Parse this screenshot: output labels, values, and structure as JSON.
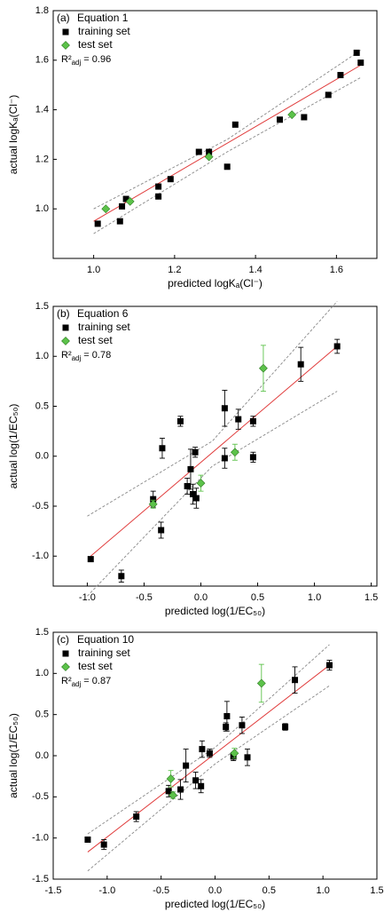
{
  "chart_data": [
    {
      "type": "scatter",
      "panel": "(a)",
      "title": "Equation 1",
      "r2_label": "R²",
      "r2_sub": "adj",
      "r2_value": "= 0.96",
      "xlabel": "predicted logKₐ(Cl⁻)",
      "ylabel": "actual logKₐ(Cl⁻)",
      "xlim": [
        0.9,
        1.7
      ],
      "ylim": [
        0.8,
        1.8
      ],
      "xticks": [
        {
          "value": 1,
          "label": "1.0"
        },
        1.2,
        1.4,
        1.6
      ],
      "yticks": [
        {
          "value": 1,
          "label": "1.0"
        },
        1.2,
        1.4,
        1.6,
        1.8
      ],
      "series": [
        {
          "name": "training set",
          "color": "#000000",
          "marker": "square",
          "x": [
            1.01,
            1.065,
            1.07,
            1.08,
            1.16,
            1.16,
            1.19,
            1.26,
            1.285,
            1.33,
            1.35,
            1.46,
            1.52,
            1.58,
            1.61,
            1.65,
            1.66
          ],
          "y": [
            0.94,
            0.95,
            1.01,
            1.04,
            1.09,
            1.05,
            1.12,
            1.23,
            1.23,
            1.17,
            1.34,
            1.36,
            1.37,
            1.46,
            1.54,
            1.63,
            1.59
          ]
        },
        {
          "name": "test set",
          "color": "#5cc24a",
          "marker": "diamond",
          "x": [
            1.03,
            1.09,
            1.285,
            1.49
          ],
          "y": [
            1.0,
            1.03,
            1.21,
            1.38
          ]
        }
      ],
      "fit": {
        "color": "#e03a3a",
        "x": [
          1.0,
          1.66
        ],
        "y": [
          0.95,
          1.58
        ]
      },
      "band": {
        "color": "#888888",
        "upper": {
          "x": [
            1.0,
            1.33,
            1.66
          ],
          "y": [
            1.0,
            1.28,
            1.64
          ]
        },
        "lower": {
          "x": [
            1.0,
            1.33,
            1.66
          ],
          "y": [
            0.9,
            1.23,
            1.53
          ]
        }
      }
    },
    {
      "type": "scatter",
      "panel": "(b)",
      "title": "Equation 6",
      "r2_label": "R²",
      "r2_sub": "adj",
      "r2_value": "= 0.78",
      "xlabel": "predicted log(1/EC₅₀)",
      "ylabel": "actual log(1/EC₅₀)",
      "xlim": [
        -1.3,
        1.55
      ],
      "ylim": [
        -1.3,
        1.5
      ],
      "xticks": [
        {
          "value": -1,
          "label": "-1.0"
        },
        -0.5,
        {
          "value": 0,
          "label": "0.0"
        },
        0.5,
        {
          "value": 1,
          "label": "1.0"
        },
        1.5
      ],
      "yticks": [
        {
          "value": -1,
          "label": "-1.0"
        },
        -0.5,
        {
          "value": 0,
          "label": "0.0"
        },
        0.5,
        {
          "value": 1,
          "label": "1.0"
        },
        1.5
      ],
      "series": [
        {
          "name": "training set",
          "color": "#000000",
          "marker": "square",
          "x": [
            -0.97,
            -0.7,
            -0.42,
            -0.35,
            -0.34,
            -0.18,
            -0.12,
            -0.09,
            -0.07,
            -0.05,
            -0.04,
            0.21,
            0.21,
            0.33,
            0.46,
            0.46,
            0.88,
            1.2
          ],
          "y": [
            -1.03,
            -1.2,
            -0.43,
            -0.74,
            0.08,
            0.35,
            -0.3,
            -0.13,
            -0.38,
            0.04,
            -0.42,
            0.48,
            -0.02,
            0.37,
            0.35,
            -0.01,
            0.92,
            1.1
          ],
          "yerr": [
            0.02,
            0.06,
            0.08,
            0.08,
            0.1,
            0.05,
            0.08,
            0.2,
            0.1,
            0.05,
            0.1,
            0.18,
            0.1,
            0.1,
            0.05,
            0.05,
            0.17,
            0.07
          ]
        },
        {
          "name": "test set",
          "color": "#5cc24a",
          "marker": "diamond",
          "x": [
            -0.42,
            0.0,
            0.3,
            0.55
          ],
          "y": [
            -0.48,
            -0.27,
            0.04,
            0.88
          ],
          "yerr": [
            0.04,
            0.08,
            0.08,
            0.23
          ]
        }
      ],
      "fit": {
        "color": "#e03a3a",
        "x": [
          -0.97,
          1.2
        ],
        "y": [
          -1.0,
          1.1
        ]
      },
      "band": {
        "color": "#888888",
        "upper": {
          "x": [
            -1.0,
            0.1,
            1.2
          ],
          "y": [
            -0.6,
            0.15,
            1.55
          ]
        },
        "lower": {
          "x": [
            -1.0,
            0.1,
            1.2
          ],
          "y": [
            -1.4,
            -0.1,
            0.65
          ]
        }
      }
    },
    {
      "type": "scatter",
      "panel": "(c)",
      "title": "Equation 10",
      "r2_label": "R²",
      "r2_sub": "adj",
      "r2_value": "= 0.87",
      "xlabel": "predicted log(1/EC₅₀)",
      "ylabel": "actual log(1/EC₅₀)",
      "xlim": [
        -1.5,
        1.5
      ],
      "ylim": [
        -1.5,
        1.5
      ],
      "xticks": [
        -1.5,
        {
          "value": -1,
          "label": "-1.0"
        },
        -0.5,
        {
          "value": 0,
          "label": "0.0"
        },
        0.5,
        {
          "value": 1,
          "label": "1.0"
        },
        1.5
      ],
      "yticks": [
        -1.5,
        {
          "value": -1,
          "label": "-1.0"
        },
        -0.5,
        {
          "value": 0,
          "label": "0.0"
        },
        0.5,
        {
          "value": 1,
          "label": "1.0"
        },
        1.5
      ],
      "series": [
        {
          "name": "training set",
          "color": "#000000",
          "marker": "square",
          "x": [
            -1.18,
            -1.03,
            -0.73,
            -0.43,
            -0.32,
            -0.27,
            -0.18,
            -0.13,
            -0.12,
            -0.05,
            0.1,
            0.11,
            0.17,
            0.25,
            0.3,
            0.65,
            0.74,
            1.06
          ],
          "y": [
            -1.02,
            -1.08,
            -0.74,
            -0.43,
            -0.41,
            -0.12,
            -0.3,
            -0.37,
            0.08,
            0.03,
            0.35,
            0.48,
            -0.01,
            0.37,
            -0.02,
            0.35,
            0.92,
            1.1
          ],
          "yerr": [
            0.02,
            0.06,
            0.06,
            0.07,
            0.12,
            0.2,
            0.1,
            0.08,
            0.1,
            0.05,
            0.05,
            0.18,
            0.05,
            0.1,
            0.1,
            0.04,
            0.16,
            0.06
          ]
        },
        {
          "name": "test set",
          "color": "#5cc24a",
          "marker": "diamond",
          "x": [
            -0.41,
            -0.39,
            0.18,
            0.43
          ],
          "y": [
            -0.28,
            -0.48,
            0.03,
            0.88
          ],
          "yerr": [
            0.1,
            0.04,
            0.06,
            0.23
          ]
        }
      ],
      "fit": {
        "color": "#e03a3a",
        "x": [
          -1.18,
          1.06
        ],
        "y": [
          -1.17,
          1.1
        ]
      },
      "band": {
        "color": "#888888",
        "upper": {
          "x": [
            -1.18,
            0.0,
            1.06
          ],
          "y": [
            -0.95,
            0.1,
            1.35
          ]
        },
        "lower": {
          "x": [
            -1.18,
            0.0,
            1.06
          ],
          "y": [
            -1.4,
            -0.1,
            0.85
          ]
        }
      }
    }
  ]
}
